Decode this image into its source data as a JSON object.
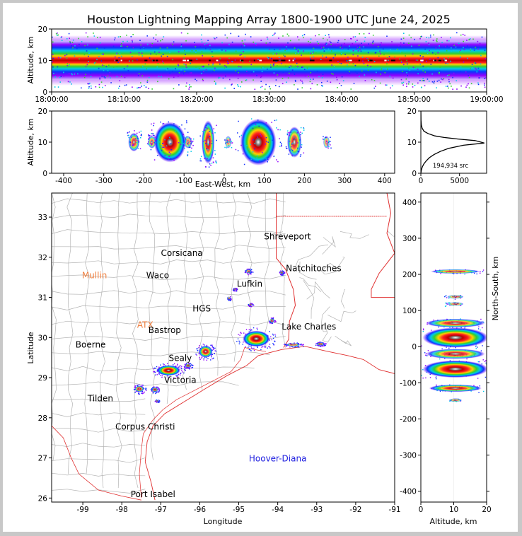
{
  "title": "Houston Lightning Mapping Array 1800-1900 UTC June 24, 2025",
  "colors": {
    "state_border": "#e03030",
    "county_border": "#b4b4b4",
    "coast": "#e03030",
    "label_city": "#000000",
    "label_mullin": "#f08040",
    "label_atx": "#f08040",
    "label_hoover": "#2020e0"
  },
  "chart_data": [
    {
      "id": "time-height",
      "type": "heatmap",
      "ylabel": "Altitude, km",
      "ylim": [
        0,
        20
      ],
      "yticks": [
        "0",
        "10",
        "20"
      ],
      "xlim_minutes": [
        0,
        60
      ],
      "xticks": [
        "18:00:00",
        "18:10:00",
        "18:20:00",
        "18:30:00",
        "18:40:00",
        "18:50:00",
        "19:00:00"
      ],
      "density_band_km": [
        4,
        16
      ],
      "peak_altitude_km": 10
    },
    {
      "id": "east-west-height",
      "type": "heatmap",
      "xlabel": "East-West, km",
      "ylabel": "Altitude, km",
      "xlim": [
        -430,
        425
      ],
      "ylim": [
        0,
        20
      ],
      "xticks": [
        "-400",
        "-300",
        "-200",
        "-100",
        "0",
        "100",
        "200",
        "300",
        "400"
      ],
      "yticks": [
        "0",
        "10",
        "20"
      ],
      "clusters": [
        {
          "x": -225,
          "width": 14,
          "alt": [
            8,
            14
          ],
          "intensity": 0.6
        },
        {
          "x": -180,
          "width": 10,
          "alt": [
            9,
            13
          ],
          "intensity": 0.5
        },
        {
          "x": -135,
          "width": 40,
          "alt": [
            4,
            17
          ],
          "intensity": 1.0
        },
        {
          "x": -90,
          "width": 10,
          "alt": [
            8,
            12
          ],
          "intensity": 0.4
        },
        {
          "x": -40,
          "width": 16,
          "alt": [
            2,
            16
          ],
          "intensity": 0.8
        },
        {
          "x": 10,
          "width": 8,
          "alt": [
            8,
            12
          ],
          "intensity": 0.3
        },
        {
          "x": 85,
          "width": 45,
          "alt": [
            3,
            18
          ],
          "intensity": 1.0
        },
        {
          "x": 175,
          "width": 18,
          "alt": [
            5,
            15
          ],
          "intensity": 0.7
        },
        {
          "x": 255,
          "width": 8,
          "alt": [
            8,
            12
          ],
          "intensity": 0.3
        }
      ]
    },
    {
      "id": "altitude-histogram",
      "type": "line",
      "text": "194,934 src",
      "xlim": [
        0,
        8500
      ],
      "ylim": [
        0,
        20
      ],
      "xticks": [
        "0",
        "5000"
      ],
      "yticks": [
        "0",
        "10",
        "20"
      ],
      "points": [
        [
          0,
          0
        ],
        [
          60,
          1
        ],
        [
          180,
          2
        ],
        [
          380,
          3
        ],
        [
          700,
          4
        ],
        [
          1100,
          5
        ],
        [
          1700,
          6
        ],
        [
          2500,
          7
        ],
        [
          3600,
          8
        ],
        [
          5500,
          9
        ],
        [
          8200,
          9.7
        ],
        [
          7000,
          10.5
        ],
        [
          4800,
          11
        ],
        [
          3000,
          11.5
        ],
        [
          1800,
          12
        ],
        [
          900,
          12.8
        ],
        [
          400,
          13.5
        ],
        [
          160,
          14.5
        ],
        [
          60,
          15.5
        ],
        [
          20,
          17
        ],
        [
          5,
          19
        ],
        [
          0,
          20
        ]
      ]
    },
    {
      "id": "plan-view-map",
      "type": "scatter",
      "xlabel": "Longitude",
      "ylabel": "Latitude",
      "xlim": [
        -99.8,
        -91.0
      ],
      "ylim": [
        25.9,
        33.6
      ],
      "xticks": [
        "-99",
        "-98",
        "-97",
        "-96",
        "-95",
        "-94",
        "-93",
        "-92",
        "-91"
      ],
      "yticks": [
        "26",
        "27",
        "28",
        "29",
        "30",
        "31",
        "32",
        "33"
      ],
      "cities": [
        {
          "name": "Shreveport",
          "lon": -93.75,
          "lat": 32.52,
          "color": "#000000"
        },
        {
          "name": "Corsicana",
          "lon": -96.46,
          "lat": 32.1,
          "color": "#000000"
        },
        {
          "name": "Natchitoches",
          "lon": -93.08,
          "lat": 31.72,
          "color": "#000000"
        },
        {
          "name": "Mullin",
          "lon": -98.7,
          "lat": 31.55,
          "color": "#f08040"
        },
        {
          "name": "Waco",
          "lon": -97.08,
          "lat": 31.55,
          "color": "#000000"
        },
        {
          "name": "Lufkin",
          "lon": -94.72,
          "lat": 31.34,
          "color": "#000000"
        },
        {
          "name": "ATX",
          "lon": -97.4,
          "lat": 30.31,
          "color": "#f08040"
        },
        {
          "name": "Bastrop",
          "lon": -96.9,
          "lat": 30.18,
          "color": "#000000"
        },
        {
          "name": "Lake Charles",
          "lon": -93.2,
          "lat": 30.27,
          "color": "#000000"
        },
        {
          "name": "Boerne",
          "lon": -98.8,
          "lat": 29.82,
          "color": "#000000"
        },
        {
          "name": "Sealy",
          "lon": -96.5,
          "lat": 29.49,
          "color": "#000000"
        },
        {
          "name": "Victoria",
          "lon": -96.5,
          "lat": 28.94,
          "color": "#000000"
        },
        {
          "name": "Tilden",
          "lon": -98.55,
          "lat": 28.48,
          "color": "#000000"
        },
        {
          "name": "Corpus Christi",
          "lon": -97.4,
          "lat": 27.78,
          "color": "#000000"
        },
        {
          "name": "Hoover-Diana",
          "lon": -94.0,
          "lat": 26.98,
          "color": "#2020e0"
        },
        {
          "name": "Port Isabel",
          "lon": -97.2,
          "lat": 26.09,
          "color": "#000000"
        },
        {
          "name": "HGS",
          "lon": -95.95,
          "lat": 30.72,
          "color": "#000000"
        }
      ],
      "clusters": [
        {
          "lon": -94.55,
          "lat": 29.97,
          "rx": 0.35,
          "ry": 0.2,
          "intensity": 1.0
        },
        {
          "lon": -96.8,
          "lat": 29.18,
          "rx": 0.3,
          "ry": 0.13,
          "intensity": 1.0
        },
        {
          "lon": -95.85,
          "lat": 29.65,
          "rx": 0.18,
          "ry": 0.15,
          "intensity": 0.8
        },
        {
          "lon": -93.6,
          "lat": 29.82,
          "rx": 0.18,
          "ry": 0.04,
          "intensity": 0.5
        },
        {
          "lon": -92.9,
          "lat": 29.84,
          "rx": 0.1,
          "ry": 0.04,
          "intensity": 0.5
        },
        {
          "lon": -97.55,
          "lat": 28.72,
          "rx": 0.12,
          "ry": 0.08,
          "intensity": 0.6
        },
        {
          "lon": -97.15,
          "lat": 28.7,
          "rx": 0.08,
          "ry": 0.06,
          "intensity": 0.6
        },
        {
          "lon": -96.3,
          "lat": 29.3,
          "rx": 0.08,
          "ry": 0.05,
          "intensity": 0.6
        },
        {
          "lon": -94.15,
          "lat": 30.42,
          "rx": 0.06,
          "ry": 0.06,
          "intensity": 0.4
        },
        {
          "lon": -94.75,
          "lat": 31.65,
          "rx": 0.07,
          "ry": 0.05,
          "intensity": 0.4
        },
        {
          "lon": -93.9,
          "lat": 31.62,
          "rx": 0.05,
          "ry": 0.04,
          "intensity": 0.4
        },
        {
          "lon": -95.25,
          "lat": 30.98,
          "rx": 0.04,
          "ry": 0.04,
          "intensity": 0.3
        },
        {
          "lon": -95.1,
          "lat": 31.2,
          "rx": 0.04,
          "ry": 0.03,
          "intensity": 0.3
        },
        {
          "lon": -94.7,
          "lat": 30.82,
          "rx": 0.05,
          "ry": 0.03,
          "intensity": 0.3
        },
        {
          "lon": -97.1,
          "lat": 28.42,
          "rx": 0.04,
          "ry": 0.03,
          "intensity": 0.2
        }
      ]
    },
    {
      "id": "north-south-height",
      "type": "heatmap",
      "xlabel": "Altitude, km",
      "ylabel": "North-South, km",
      "xlim": [
        0,
        20
      ],
      "ylim": [
        -430,
        425
      ],
      "xticks": [
        "0",
        "10",
        "20"
      ],
      "yticks": [
        "-400",
        "-300",
        "-200",
        "-100",
        "0",
        "100",
        "200",
        "300",
        "400"
      ],
      "clusters": [
        {
          "y": 208,
          "height": 6,
          "alt": [
            4,
            19
          ],
          "intensity": 0.6
        },
        {
          "y": 138,
          "height": 5,
          "alt": [
            7,
            12
          ],
          "intensity": 0.4
        },
        {
          "y": 118,
          "height": 5,
          "alt": [
            7,
            12
          ],
          "intensity": 0.4
        },
        {
          "y": 65,
          "height": 12,
          "alt": [
            1,
            19
          ],
          "intensity": 0.7
        },
        {
          "y": 25,
          "height": 28,
          "alt": [
            0,
            20
          ],
          "intensity": 1.0
        },
        {
          "y": -20,
          "height": 14,
          "alt": [
            1,
            19
          ],
          "intensity": 0.7
        },
        {
          "y": -62,
          "height": 24,
          "alt": [
            0,
            20
          ],
          "intensity": 1.0
        },
        {
          "y": -115,
          "height": 10,
          "alt": [
            3,
            19
          ],
          "intensity": 0.8
        },
        {
          "y": -148,
          "height": 4,
          "alt": [
            8,
            12
          ],
          "intensity": 0.3
        }
      ]
    }
  ]
}
